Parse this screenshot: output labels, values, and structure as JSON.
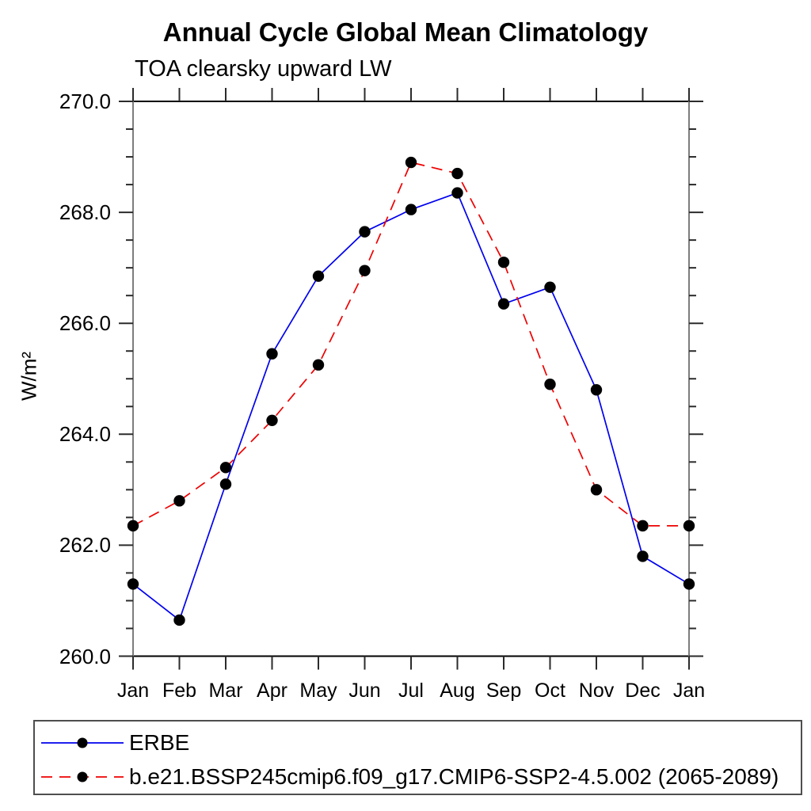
{
  "title": "Annual Cycle Global Mean Climatology",
  "subtitle": "TOA clearsky upward LW",
  "chart_data": {
    "type": "line",
    "title": "Annual Cycle Global Mean Climatology",
    "subtitle": "TOA clearsky upward LW",
    "xlabel": "",
    "ylabel": "W/m²",
    "ylim": [
      260.0,
      270.0
    ],
    "ytick_major_interval": 2.0,
    "ytick_minor_interval": 0.5,
    "ytick_labels": [
      "260.0",
      "262.0",
      "264.0",
      "266.0",
      "268.0",
      "270.0"
    ],
    "categories": [
      "Jan",
      "Feb",
      "Mar",
      "Apr",
      "May",
      "Jun",
      "Jul",
      "Aug",
      "Sep",
      "Oct",
      "Nov",
      "Dec",
      "Jan"
    ],
    "grid": false,
    "legend_position": "bottom-left-box",
    "marker": "filled-circle",
    "marker_color": "#000000",
    "series": [
      {
        "name": "ERBE",
        "color": "#0000ee",
        "line_style": "solid",
        "values": [
          261.3,
          260.65,
          263.1,
          265.45,
          266.85,
          267.65,
          268.05,
          268.35,
          266.35,
          266.65,
          264.8,
          261.8,
          261.3
        ]
      },
      {
        "name": "b.e21.BSSP245cmip6.f09_g17.CMIP6-SSP2-4.5.002 (2065-2089)",
        "color": "#ee0000",
        "line_style": "dashed",
        "values": [
          262.35,
          262.8,
          263.4,
          264.25,
          265.25,
          266.95,
          268.9,
          268.7,
          267.1,
          264.9,
          263.0,
          262.35,
          262.35
        ]
      }
    ]
  },
  "axis_colors": {
    "frame_horizontal": "#000000",
    "frame_vertical": "#7d7d7d",
    "ticks": "#2b2b2b"
  }
}
